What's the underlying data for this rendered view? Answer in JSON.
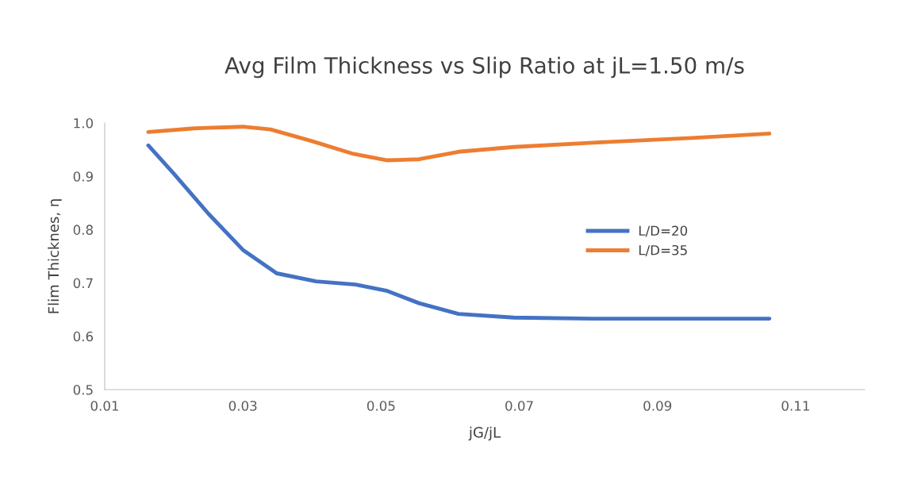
{
  "chart_data": {
    "type": "line",
    "title": "Avg Film Thickness vs Slip Ratio at jL=1.50 m/s",
    "xlabel": "jG/jL",
    "ylabel": "Flim Thicknes, η",
    "xlim": [
      0.01,
      0.12
    ],
    "xticks": [
      0.01,
      0.03,
      0.05,
      0.07,
      0.09,
      0.11
    ],
    "ylim": [
      0.5,
      1.0
    ],
    "yticks": [
      {
        "value": 0.5,
        "label": "0.5"
      },
      {
        "value": 0.6,
        "label": "0.6"
      },
      {
        "value": 0.7,
        "label": "0.7"
      },
      {
        "value": 0.8,
        "label": "0.8"
      },
      {
        "value": 0.9,
        "label": "0.9"
      },
      {
        "value": 1.0,
        "label": "1.0"
      }
    ],
    "grid": false,
    "legend": "right",
    "marker": "none",
    "line_style": "solid",
    "series": [
      {
        "name": "L/D=20",
        "color": "#4472c4",
        "x": [
          0.0163,
          0.02,
          0.025,
          0.03,
          0.0349,
          0.0406,
          0.0463,
          0.0509,
          0.0555,
          0.0612,
          0.0692,
          0.0806,
          0.095,
          0.1062
        ],
        "values": [
          0.958,
          0.905,
          0.83,
          0.762,
          0.718,
          0.703,
          0.697,
          0.685,
          0.662,
          0.642,
          0.635,
          0.633,
          0.633,
          0.633
        ]
      },
      {
        "name": "L/D=35",
        "color": "#ed7d31",
        "x": [
          0.0163,
          0.023,
          0.03,
          0.034,
          0.04,
          0.046,
          0.0509,
          0.0555,
          0.0612,
          0.0692,
          0.0806,
          0.095,
          0.1062
        ],
        "values": [
          0.983,
          0.99,
          0.993,
          0.988,
          0.966,
          0.942,
          0.93,
          0.932,
          0.946,
          0.955,
          0.963,
          0.972,
          0.98
        ]
      }
    ]
  }
}
